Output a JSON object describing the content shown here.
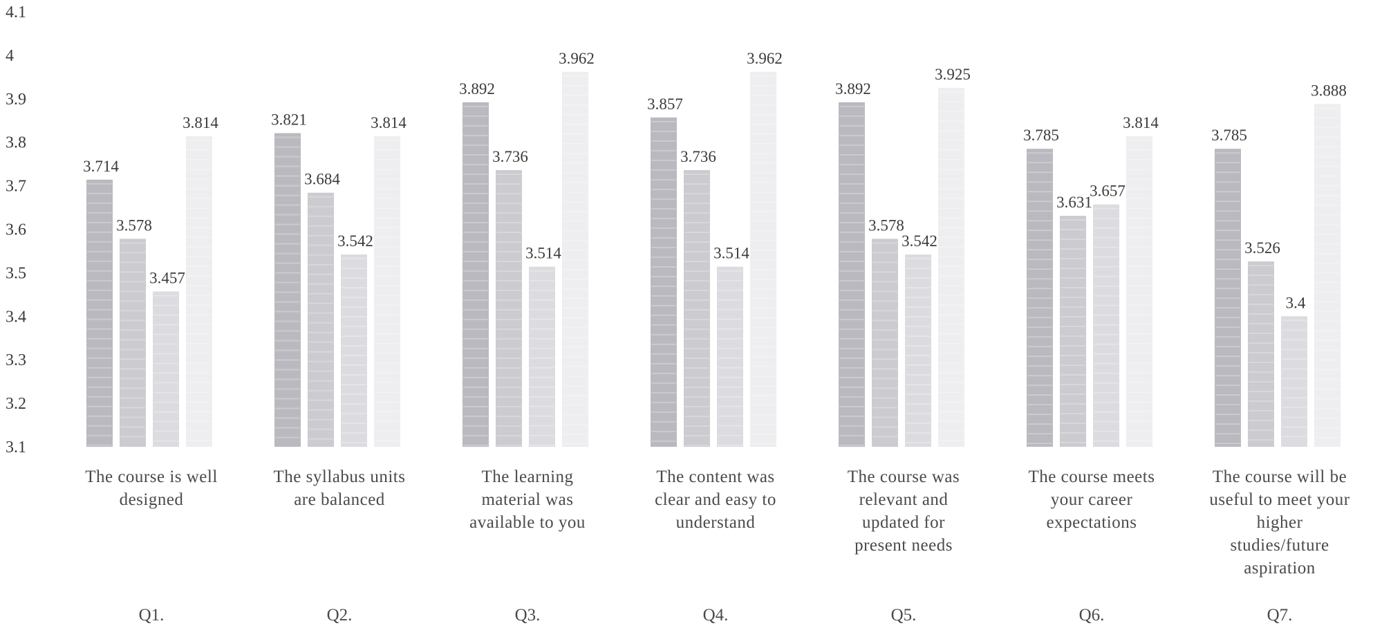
{
  "chart_data": {
    "type": "bar",
    "title": "",
    "xlabel": "",
    "ylabel": "",
    "ylim": [
      3.1,
      4.1
    ],
    "yticks": [
      "3.1",
      "3.2",
      "3.3",
      "3.4",
      "3.5",
      "3.6",
      "3.7",
      "3.8",
      "3.9",
      "4",
      "4.1"
    ],
    "grid": false,
    "legend": "none",
    "colors": [
      "#b9b9bf",
      "#cbcbd0",
      "#dcdce0",
      "#eeeef0"
    ],
    "groups": [
      {
        "id": "Q1.",
        "label_lines": [
          "The course is well",
          "designed"
        ],
        "values": [
          3.714,
          3.578,
          3.457,
          3.814
        ]
      },
      {
        "id": "Q2.",
        "label_lines": [
          "The syllabus units",
          "are balanced"
        ],
        "values": [
          3.821,
          3.684,
          3.542,
          3.814
        ]
      },
      {
        "id": "Q3.",
        "label_lines": [
          "The learning",
          "material was",
          "available to you"
        ],
        "values": [
          3.892,
          3.736,
          3.514,
          3.962
        ]
      },
      {
        "id": "Q4.",
        "label_lines": [
          "The content was",
          "clear and easy to",
          "understand"
        ],
        "values": [
          3.857,
          3.736,
          3.514,
          3.962
        ]
      },
      {
        "id": "Q5.",
        "label_lines": [
          "The course was",
          "relevant and",
          "updated for",
          "present needs"
        ],
        "values": [
          3.892,
          3.578,
          3.542,
          3.925
        ]
      },
      {
        "id": "Q6.",
        "label_lines": [
          "The course meets",
          "your career",
          "expectations"
        ],
        "values": [
          3.785,
          3.631,
          3.657,
          3.814
        ]
      },
      {
        "id": "Q7.",
        "label_lines": [
          "The course will be",
          "useful to meet your",
          "higher",
          "studies/future",
          "aspiration"
        ],
        "values": [
          3.785,
          3.526,
          3.4,
          3.888
        ]
      }
    ]
  }
}
